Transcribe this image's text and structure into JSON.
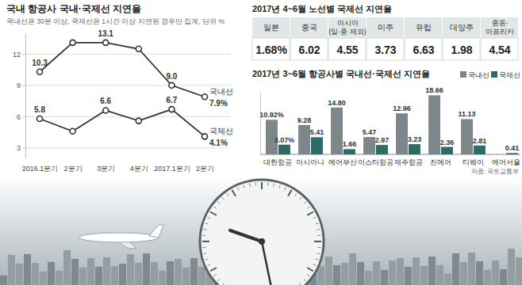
{
  "chart_data": [
    {
      "type": "line",
      "title": "국내 항공사 국내·국제선 지연율",
      "subtitle": "국내선은 30분 이상, 국제선은 1시간 이상 지연된 경우만 집계, 단위 %",
      "categories": [
        "2016.1분기",
        "2분기",
        "3분기",
        "4분기",
        "2017.1분기",
        "2분기"
      ],
      "series": [
        {
          "name": "국내선",
          "color": "#333333",
          "marker": "circle",
          "values": [
            10.3,
            13.1,
            13.1,
            12.5,
            9.0,
            7.9
          ],
          "value_labels": [
            "10.3",
            null,
            "13.1",
            null,
            "9.0",
            "7.9%"
          ]
        },
        {
          "name": "국제선",
          "color": "#333333",
          "marker": "circle",
          "values": [
            5.8,
            4.6,
            6.6,
            5.6,
            6.7,
            4.1
          ],
          "value_labels": [
            "5.8",
            null,
            "6.6",
            null,
            "6.7",
            "4.1%"
          ]
        }
      ],
      "ylim": [
        2,
        14
      ],
      "yticks": [
        3,
        6,
        9,
        12
      ],
      "grid": true,
      "data_labels": true
    },
    {
      "type": "table",
      "title": "2017년 4~6월 노선별 국제선 지연율",
      "categories": [
        "일본",
        "중국",
        "아시아(일·중 제외)",
        "미주",
        "유럽",
        "대양주",
        "중동·아프리카"
      ],
      "values": [
        1.68,
        6.02,
        4.55,
        3.73,
        6.63,
        1.98,
        4.54
      ],
      "value_labels": [
        "1.68%",
        "6.02",
        "4.55",
        "3.73",
        "6.63",
        "1.98",
        "4.54"
      ]
    },
    {
      "type": "bar",
      "title": "2017년 3~6월 항공사별 국내선·국제선 지연율",
      "source": "자료: 국토교통부",
      "categories": [
        "대한항공",
        "아시아나",
        "에어부산",
        "이스타항공",
        "제주항공",
        "진에어",
        "티웨이",
        "에어서울"
      ],
      "series": [
        {
          "name": "국내선",
          "color": "#7d8789",
          "values": [
            10.92,
            9.28,
            14.8,
            5.47,
            12.96,
            18.66,
            11.13,
            null
          ],
          "value_labels": [
            "10.92%",
            "9.28",
            "14.80",
            "5.47",
            "12.96",
            "18.66",
            "11.13",
            null
          ]
        },
        {
          "name": "국제선",
          "color": "#2e6a66",
          "values": [
            3.07,
            5.41,
            1.66,
            2.97,
            3.23,
            2.36,
            2.81,
            0.41
          ],
          "value_labels": [
            "3.07%",
            "5.41",
            "1.66",
            "2.97",
            "3.23",
            "2.36",
            "2.81",
            "0.41"
          ]
        }
      ],
      "ylim": [
        0,
        20
      ],
      "tick_labels": false,
      "data_labels": true,
      "legend": "top right"
    }
  ]
}
